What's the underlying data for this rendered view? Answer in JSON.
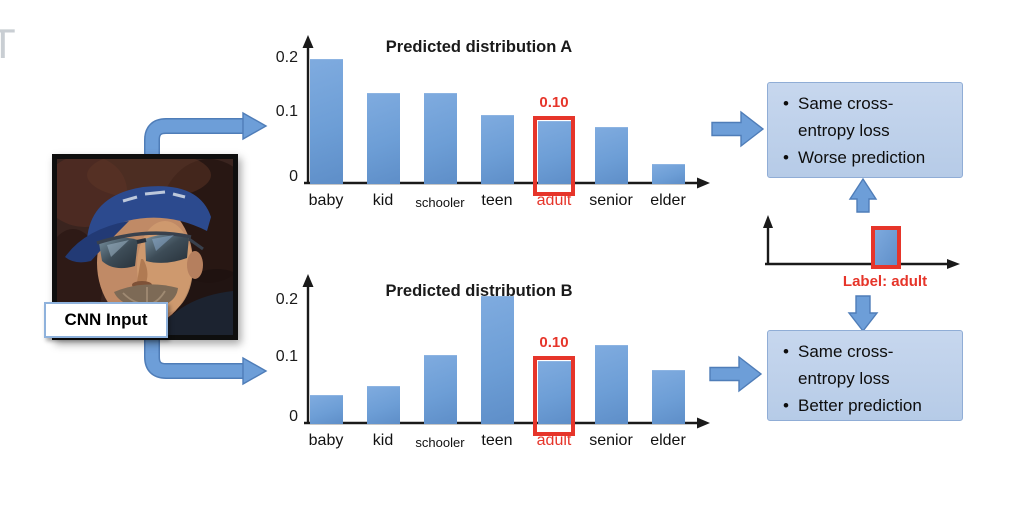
{
  "cropped_letter": "T",
  "cnn_input": {
    "label": "CNN Input"
  },
  "chart_data": [
    {
      "type": "bar",
      "title": "Predicted distribution A",
      "categories": [
        "baby",
        "kid",
        "schooler",
        "teen",
        "adult",
        "senior",
        "elder"
      ],
      "values": [
        0.2,
        0.145,
        0.145,
        0.11,
        0.1,
        0.09,
        0.03
      ],
      "y_ticks": [
        "0.2",
        "0.1",
        "0"
      ],
      "y_tick_values": [
        0.2,
        0.1,
        0
      ],
      "ylim": [
        0,
        0.23
      ],
      "grid": false,
      "highlight": {
        "category": "adult",
        "index": 4,
        "value_label": "0.10"
      }
    },
    {
      "type": "bar",
      "title": "Predicted distribution B",
      "categories": [
        "baby",
        "kid",
        "schooler",
        "teen",
        "adult",
        "senior",
        "elder"
      ],
      "values": [
        0.045,
        0.06,
        0.11,
        0.205,
        0.1,
        0.125,
        0.085
      ],
      "y_ticks": [
        "0.2",
        "0.1",
        "0"
      ],
      "y_tick_values": [
        0.2,
        0.1,
        0
      ],
      "ylim": [
        0,
        0.23
      ],
      "grid": false,
      "highlight": {
        "category": "adult",
        "index": 4,
        "value_label": "0.10"
      }
    }
  ],
  "label_chart": {
    "caption": "Label: adult",
    "highlighted_bar": "adult"
  },
  "boxes": [
    {
      "bullets": [
        "Same cross-entropy loss",
        "Worse prediction"
      ]
    },
    {
      "bullets": [
        "Same cross-entropy loss",
        "Better prediction"
      ]
    }
  ],
  "colors": {
    "bar_blue": "#6d9ed8",
    "arrow_blue": "#6d9ed8",
    "arrow_outline": "#4f7db8",
    "box_fill": "#bfd2ea",
    "box_border": "#90add6",
    "highlight_red": "#e6352a",
    "axis_black": "#1a1a1a",
    "cropped_letter_gray": "#c9ced3"
  }
}
